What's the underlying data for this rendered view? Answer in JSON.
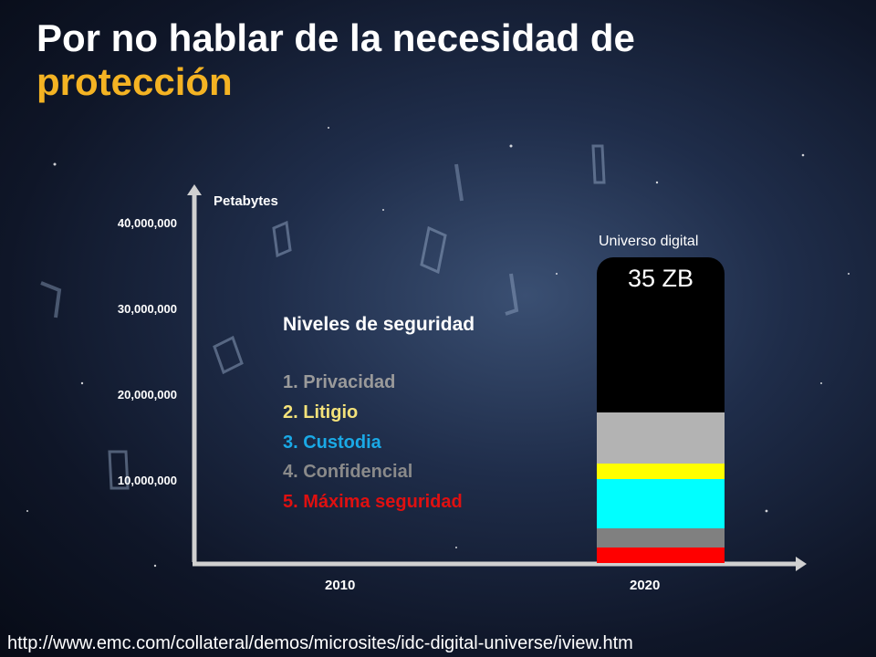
{
  "slide": {
    "title_main": "Por no hablar de la necesidad de",
    "title_accent": "protección",
    "source_url": "http://www.emc.com/collateral/demos/microsites/idc-digital-universe/iview.htm"
  },
  "chart_data": {
    "type": "bar",
    "ylabel": "Petabytes",
    "yticks": [
      "40,000,000",
      "30,000,000",
      "20,000,000",
      "10,000,000"
    ],
    "categories": [
      "2010",
      "2020"
    ],
    "bar": {
      "category": "2020",
      "label": "Universo digital",
      "value_label": "35 ZB"
    },
    "legend_title": "Niveles de seguridad",
    "levels": [
      {
        "label": "1. Privacidad",
        "color": "#b3b3b3"
      },
      {
        "label": "2. Litigio",
        "color": "#ffff00"
      },
      {
        "label": "3. Custodia",
        "color": "#00ffff"
      },
      {
        "label": "4. Confidencial",
        "color": "#808080"
      },
      {
        "label": "5. Máxima seguridad",
        "color": "#ff0000"
      }
    ],
    "text_colors": [
      "#9a9a9a",
      "#f4e27a",
      "#1aa9e6",
      "#8a8a8a",
      "#e01010"
    ]
  }
}
